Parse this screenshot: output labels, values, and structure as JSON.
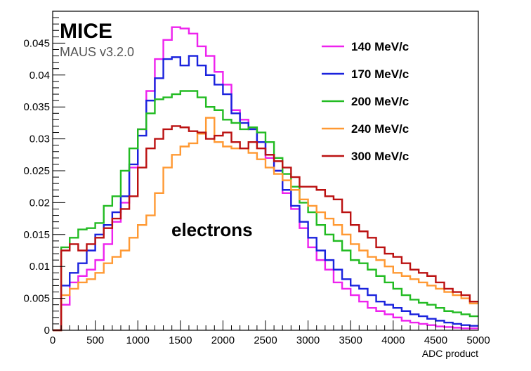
{
  "chart_data": {
    "type": "line",
    "style": "step-histogram",
    "xlabel": "ADC product",
    "ylabel": "",
    "xlim": [
      0,
      5000
    ],
    "ylim": [
      0,
      0.05
    ],
    "x_ticks": [
      "0",
      "500",
      "1000",
      "1500",
      "2000",
      "2500",
      "3000",
      "3500",
      "4000",
      "4500",
      "5000"
    ],
    "y_ticks": [
      "0",
      "0.005",
      "0.01",
      "0.015",
      "0.02",
      "0.025",
      "0.03",
      "0.035",
      "0.04",
      "0.045"
    ],
    "grid": false,
    "legend_position": "top-right",
    "logo": "MICE",
    "version": "MAUS v3.2.0",
    "annotation": "electrons",
    "bin_width": 100,
    "bin_start": 0,
    "series": [
      {
        "name": "140 MeV/c",
        "color": "#ee22ee",
        "values": [
          0,
          0.004,
          0.0075,
          0.0085,
          0.0095,
          0.011,
          0.0135,
          0.017,
          0.02,
          0.0255,
          0.0315,
          0.0375,
          0.0425,
          0.0455,
          0.0475,
          0.0473,
          0.0465,
          0.0445,
          0.043,
          0.0405,
          0.0385,
          0.0345,
          0.033,
          0.0315,
          0.0295,
          0.027,
          0.025,
          0.0215,
          0.019,
          0.016,
          0.013,
          0.011,
          0.0095,
          0.0075,
          0.0065,
          0.0055,
          0.0045,
          0.0035,
          0.003,
          0.0025,
          0.002,
          0.0015,
          0.0012,
          0.001,
          0.0008,
          0.0006,
          0.0005,
          0.0004,
          0.0003,
          0.0003
        ]
      },
      {
        "name": "170 MeV/c",
        "color": "#1a22dd",
        "values": [
          0,
          0.007,
          0.009,
          0.0105,
          0.0125,
          0.015,
          0.0165,
          0.0185,
          0.021,
          0.026,
          0.0305,
          0.036,
          0.0395,
          0.0425,
          0.0428,
          0.0415,
          0.043,
          0.0415,
          0.04,
          0.0385,
          0.037,
          0.034,
          0.0325,
          0.0315,
          0.0295,
          0.0275,
          0.025,
          0.022,
          0.0195,
          0.017,
          0.0145,
          0.0125,
          0.011,
          0.0095,
          0.008,
          0.007,
          0.0065,
          0.0055,
          0.0045,
          0.004,
          0.0035,
          0.003,
          0.0025,
          0.0022,
          0.0018,
          0.0015,
          0.0012,
          0.001,
          0.0008,
          0.0007
        ]
      },
      {
        "name": "200 MeV/c",
        "color": "#22bb22",
        "values": [
          0,
          0.013,
          0.0145,
          0.0158,
          0.016,
          0.0168,
          0.0195,
          0.021,
          0.025,
          0.0285,
          0.0315,
          0.034,
          0.0362,
          0.0365,
          0.037,
          0.0375,
          0.0375,
          0.0365,
          0.035,
          0.0345,
          0.033,
          0.0325,
          0.0315,
          0.0318,
          0.031,
          0.0295,
          0.027,
          0.0245,
          0.0225,
          0.02,
          0.0185,
          0.0165,
          0.015,
          0.014,
          0.0125,
          0.011,
          0.0105,
          0.0095,
          0.0085,
          0.0075,
          0.0065,
          0.0055,
          0.0048,
          0.0043,
          0.004,
          0.0035,
          0.003,
          0.0028,
          0.0025,
          0.0022
        ]
      },
      {
        "name": "240 MeV/c",
        "color": "#ff9933",
        "values": [
          0,
          0.0055,
          0.0065,
          0.0075,
          0.008,
          0.009,
          0.0105,
          0.0115,
          0.0125,
          0.0145,
          0.0165,
          0.018,
          0.0215,
          0.0255,
          0.0275,
          0.0288,
          0.0293,
          0.0308,
          0.0333,
          0.0295,
          0.0288,
          0.0285,
          0.0285,
          0.0278,
          0.0268,
          0.0255,
          0.0245,
          0.0235,
          0.022,
          0.0205,
          0.0195,
          0.0185,
          0.0175,
          0.0165,
          0.015,
          0.0135,
          0.0125,
          0.0115,
          0.011,
          0.01,
          0.009,
          0.0085,
          0.008,
          0.0075,
          0.007,
          0.0065,
          0.006,
          0.0055,
          0.005,
          0.0042
        ]
      },
      {
        "name": "300 MeV/c",
        "color": "#bb1111",
        "values": [
          0,
          0.0125,
          0.0135,
          0.0125,
          0.0135,
          0.0145,
          0.016,
          0.0175,
          0.019,
          0.021,
          0.0255,
          0.0285,
          0.03,
          0.0315,
          0.032,
          0.0318,
          0.0312,
          0.031,
          0.03,
          0.0305,
          0.031,
          0.0295,
          0.0285,
          0.0295,
          0.0285,
          0.0275,
          0.0265,
          0.0255,
          0.024,
          0.0225,
          0.0225,
          0.022,
          0.021,
          0.0205,
          0.0185,
          0.0165,
          0.0155,
          0.0145,
          0.013,
          0.012,
          0.0115,
          0.0105,
          0.0095,
          0.009,
          0.0085,
          0.0075,
          0.0065,
          0.006,
          0.0055,
          0.0045
        ]
      }
    ]
  }
}
